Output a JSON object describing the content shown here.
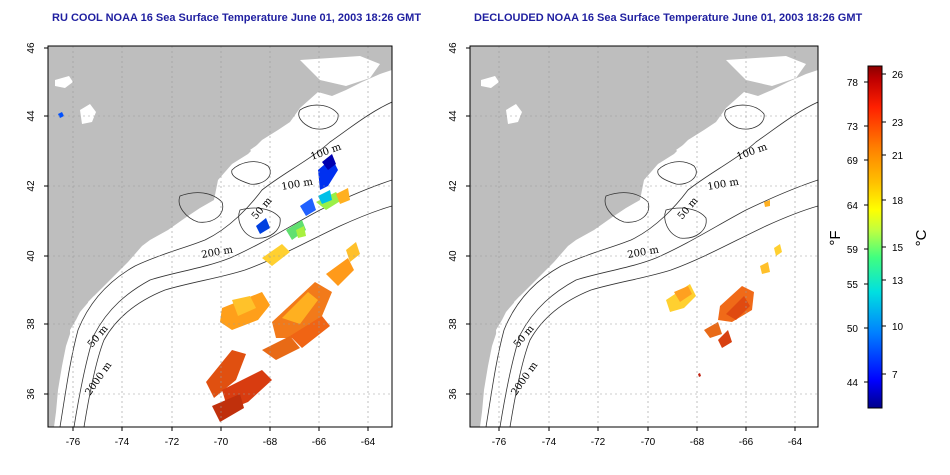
{
  "titles": {
    "left": "RU COOL NOAA 16 Sea Surface Temperature June 01, 2003 18:26 GMT",
    "right": "DECLOUDED NOAA 16 Sea Surface Temperature June 01, 2003 18:26 GMT"
  },
  "axes": {
    "x_ticks": [
      "-76",
      "-74",
      "-72",
      "-70",
      "-68",
      "-66",
      "-64"
    ],
    "y_ticks": [
      "36",
      "38",
      "40",
      "42",
      "44",
      "46"
    ]
  },
  "contour_labels": {
    "left": [
      "100 m",
      "100 m",
      "50 m",
      "200 m",
      "50 m",
      "2000 m"
    ],
    "right": [
      "100 m",
      "100 m",
      "50 m",
      "200 m",
      "50 m",
      "2000 m"
    ]
  },
  "colorbar": {
    "fahrenheit_ticks": [
      "78",
      "73",
      "69",
      "64",
      "59",
      "55",
      "50",
      "44"
    ],
    "celsius_ticks": [
      "26",
      "23",
      "21",
      "18",
      "15",
      "13",
      "10",
      "7"
    ],
    "fahrenheit_label": "°F",
    "celsius_label": "°C",
    "colors": [
      "#00008b",
      "#0000ff",
      "#0080ff",
      "#00e0e0",
      "#40ff80",
      "#c0ff40",
      "#ffff00",
      "#ffc000",
      "#ff8000",
      "#ff2000",
      "#c00000",
      "#8b0000"
    ]
  },
  "colors": {
    "land": "#bebebe",
    "ocean": "#ffffff",
    "title": "#1f1fa0",
    "grid": "#9a9a9a"
  }
}
